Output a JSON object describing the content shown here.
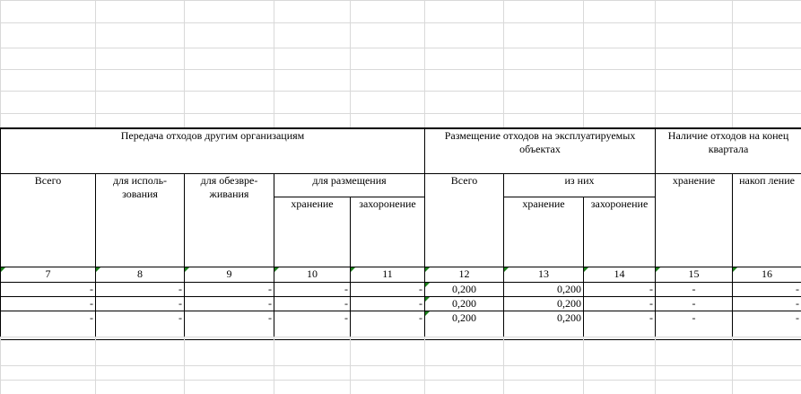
{
  "table": {
    "groups": [
      "Передача отходов другим организациям",
      "Размещение отходов на эксплуатируемых объектах",
      "Наличие отходов на конец квартала"
    ],
    "level2": [
      "Всего",
      "для исполь-\nзования",
      "для обезвре-\nживания",
      "для размещения",
      "Всего",
      "из них",
      "хранение",
      "накоп ление"
    ],
    "level3": [
      "хранение",
      "захоронение",
      "хранение",
      "захоронение"
    ],
    "numbers": [
      "7",
      "8",
      "9",
      "10",
      "11",
      "12",
      "13",
      "14",
      "15",
      "16"
    ],
    "rows": [
      [
        "-",
        "-",
        "-",
        "-",
        "-",
        "0,200",
        "0,200",
        "-",
        "-",
        "-"
      ],
      [
        "-",
        "-",
        "-",
        "-",
        "-",
        "0,200",
        "0,200",
        "-",
        "-",
        "-"
      ],
      [
        "-",
        "-",
        "-",
        "-",
        "-",
        "0,200",
        "0,200",
        "-",
        "-",
        "-"
      ]
    ]
  }
}
